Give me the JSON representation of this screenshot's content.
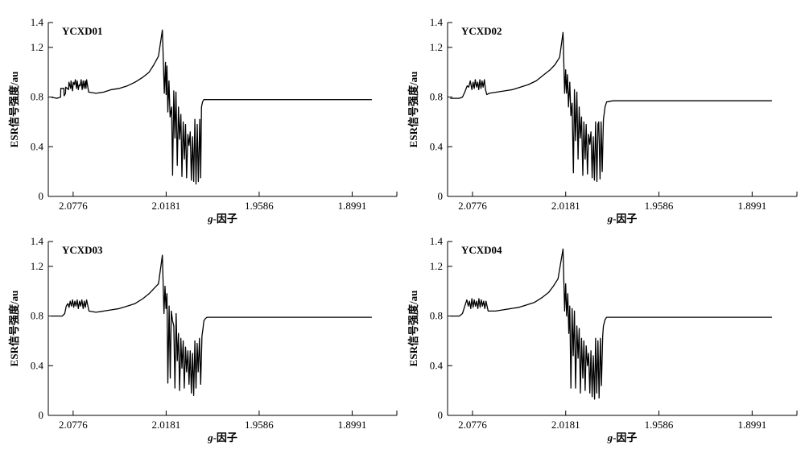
{
  "chart_data": [
    {
      "type": "line",
      "title": "YCXD01",
      "xlabel_italic": "g",
      "xlabel_rest": "-因子",
      "ylabel": "ESR信号强度/au",
      "ylim": [
        0,
        1.4
      ],
      "y_ticks": [
        "0",
        "0.4",
        "0.8",
        "1.2",
        "1.4"
      ],
      "y_tick_values": [
        0,
        0.4,
        0.8,
        1.2,
        1.4
      ],
      "x_ticks": [
        "2.0776",
        "2.0181",
        "1.9586",
        "1.8991"
      ],
      "x_tick_values": [
        2.0776,
        2.0181,
        1.9586,
        1.8991
      ],
      "xlim": [
        2.0935,
        1.8705
      ],
      "x_reversed": true,
      "series": [
        {
          "x": [
            2.0918,
            2.088,
            2.0856,
            2.0855,
            2.0835,
            2.0834,
            2.0825,
            2.0824,
            2.0805,
            2.0803,
            2.0792,
            2.079,
            2.078,
            2.0775,
            2.0768,
            2.0762,
            2.0755,
            2.075,
            2.0743,
            2.0737,
            2.0731,
            2.0725,
            2.0718,
            2.0712,
            2.0706,
            2.0699,
            2.0694,
            2.069,
            2.0677,
            2.063,
            2.058,
            2.053,
            2.048,
            2.043,
            2.038,
            2.033,
            2.029,
            2.026,
            2.023,
            2.0205,
            2.0193,
            2.0185,
            2.0181,
            2.0176,
            2.017,
            2.0163,
            2.0156,
            2.0146,
            2.014,
            2.0132,
            2.0125,
            2.0118,
            2.011,
            2.0102,
            2.0095,
            2.0087,
            2.008,
            2.0072,
            2.0064,
            2.0057,
            2.005,
            2.0042,
            2.0035,
            2.0027,
            2.002,
            2.0012,
            2.0005,
            1.9997,
            1.999,
            1.9982,
            1.9975,
            1.9966,
            1.996,
            1.9955,
            1.9948,
            1.994,
            1.993,
            1.992,
            1.988,
            1.978,
            1.965,
            1.95,
            1.935,
            1.92,
            1.905,
            1.895,
            1.887,
            1.8865
          ],
          "y": [
            0.8,
            0.79,
            0.8,
            0.87,
            0.87,
            0.81,
            0.83,
            0.88,
            0.86,
            0.92,
            0.87,
            0.93,
            0.85,
            0.92,
            0.9,
            0.94,
            0.87,
            0.93,
            0.86,
            0.9,
            0.89,
            0.94,
            0.86,
            0.93,
            0.87,
            0.93,
            0.87,
            0.94,
            0.84,
            0.83,
            0.84,
            0.86,
            0.87,
            0.89,
            0.92,
            0.96,
            1.0,
            1.06,
            1.13,
            1.34,
            0.83,
            1.08,
            0.82,
            1.05,
            0.68,
            0.93,
            0.64,
            0.72,
            0.17,
            0.85,
            0.47,
            0.84,
            0.25,
            0.72,
            0.46,
            0.66,
            0.16,
            0.6,
            0.3,
            0.58,
            0.15,
            0.5,
            0.41,
            0.52,
            0.13,
            0.48,
            0.12,
            0.62,
            0.1,
            0.58,
            0.12,
            0.62,
            0.15,
            0.72,
            0.76,
            0.78,
            0.78,
            0.78,
            0.78,
            0.78,
            0.78,
            0.78,
            0.78,
            0.78,
            0.78,
            0.78,
            0.78,
            0.78
          ]
        }
      ]
    },
    {
      "type": "line",
      "title": "YCXD02",
      "xlabel_italic": "g",
      "xlabel_rest": "-因子",
      "ylabel": "ESR信号强度/au",
      "ylim": [
        0,
        1.4
      ],
      "y_ticks": [
        "0",
        "0.4",
        "0.8",
        "1.2",
        "1.4"
      ],
      "y_tick_values": [
        0,
        0.4,
        0.8,
        1.2,
        1.4
      ],
      "x_ticks": [
        "2.0776",
        "2.0181",
        "1.9586",
        "1.8991"
      ],
      "x_tick_values": [
        2.0776,
        2.0181,
        1.9586,
        1.8991
      ],
      "xlim": [
        2.0935,
        1.8705
      ],
      "x_reversed": true,
      "series": [
        {
          "x": [
            2.0918,
            2.086,
            2.084,
            2.0825,
            2.081,
            2.08,
            2.079,
            2.078,
            2.0772,
            2.0765,
            2.0758,
            2.075,
            2.0743,
            2.0736,
            2.0729,
            2.0722,
            2.0715,
            2.0708,
            2.07,
            2.0693,
            2.0685,
            2.067,
            2.062,
            2.057,
            2.052,
            2.047,
            2.042,
            2.037,
            2.032,
            2.028,
            2.025,
            2.022,
            2.0198,
            2.0188,
            2.0181,
            2.0176,
            2.017,
            2.0163,
            2.0155,
            2.0148,
            2.014,
            2.0132,
            2.0125,
            2.0118,
            2.011,
            2.0102,
            2.0095,
            2.0088,
            2.008,
            2.0072,
            2.0065,
            2.0057,
            2.005,
            2.0042,
            2.0035,
            2.0027,
            2.002,
            2.0012,
            2.0005,
            1.9998,
            1.999,
            1.9982,
            1.9975,
            1.997,
            1.9962,
            1.9955,
            1.9948,
            1.994,
            1.993,
            1.992,
            1.988,
            1.978,
            1.965,
            1.95,
            1.935,
            1.92,
            1.905,
            1.895,
            1.887,
            1.8865
          ],
          "y": [
            0.79,
            0.79,
            0.8,
            0.84,
            0.89,
            0.88,
            0.93,
            0.86,
            0.92,
            0.87,
            0.94,
            0.88,
            0.92,
            0.86,
            0.94,
            0.87,
            0.93,
            0.88,
            0.94,
            0.86,
            0.82,
            0.83,
            0.84,
            0.85,
            0.86,
            0.88,
            0.9,
            0.93,
            0.98,
            1.02,
            1.06,
            1.12,
            1.32,
            0.83,
            1.02,
            0.83,
            0.98,
            0.72,
            0.92,
            0.65,
            0.75,
            0.19,
            0.86,
            0.45,
            0.84,
            0.3,
            0.72,
            0.47,
            0.64,
            0.17,
            0.6,
            0.3,
            0.58,
            0.18,
            0.5,
            0.42,
            0.52,
            0.15,
            0.48,
            0.13,
            0.6,
            0.12,
            0.58,
            0.6,
            0.14,
            0.6,
            0.2,
            0.62,
            0.72,
            0.76,
            0.77,
            0.77,
            0.77,
            0.77,
            0.77,
            0.77,
            0.77,
            0.77,
            0.77,
            0.77
          ]
        }
      ]
    },
    {
      "type": "line",
      "title": "YCXD03",
      "xlabel_italic": "g",
      "xlabel_rest": "-因子",
      "ylabel": "ESR信号强度/au",
      "ylim": [
        0,
        1.4
      ],
      "y_ticks": [
        "0",
        "0.4",
        "0.8",
        "1.2",
        "1.4"
      ],
      "y_tick_values": [
        0,
        0.4,
        0.8,
        1.2,
        1.4
      ],
      "x_ticks": [
        "2.0776",
        "2.0181",
        "1.9586",
        "1.8991"
      ],
      "x_tick_values": [
        2.0776,
        2.0181,
        1.9586,
        1.8991
      ],
      "xlim": [
        2.0935,
        1.8705
      ],
      "x_reversed": true,
      "series": [
        {
          "x": [
            2.0918,
            2.0845,
            2.083,
            2.082,
            2.081,
            2.0802,
            2.0795,
            2.0787,
            2.078,
            2.0772,
            2.0765,
            2.0758,
            2.075,
            2.0743,
            2.0735,
            2.0728,
            2.072,
            2.0712,
            2.0705,
            2.0698,
            2.069,
            2.0675,
            2.063,
            2.058,
            2.053,
            2.048,
            2.043,
            2.038,
            2.033,
            2.029,
            2.026,
            2.023,
            2.0205,
            2.0195,
            2.0188,
            2.0182,
            2.0176,
            2.017,
            2.0162,
            2.0155,
            2.0148,
            2.014,
            2.0132,
            2.0125,
            2.0117,
            2.011,
            2.0102,
            2.0095,
            2.0087,
            2.008,
            2.0072,
            2.0065,
            2.0057,
            2.005,
            2.0042,
            2.0035,
            2.0027,
            2.002,
            2.0012,
            2.0005,
            1.9997,
            1.999,
            1.9983,
            1.9976,
            1.9968,
            1.996,
            1.9952,
            1.9945,
            1.994,
            1.993,
            1.992,
            1.988,
            1.978,
            1.965,
            1.95,
            1.935,
            1.92,
            1.905,
            1.895,
            1.887,
            1.8865
          ],
          "y": [
            0.8,
            0.8,
            0.82,
            0.88,
            0.9,
            0.87,
            0.92,
            0.88,
            0.93,
            0.87,
            0.92,
            0.88,
            0.93,
            0.86,
            0.92,
            0.88,
            0.93,
            0.86,
            0.92,
            0.87,
            0.93,
            0.84,
            0.83,
            0.84,
            0.85,
            0.86,
            0.88,
            0.9,
            0.94,
            0.98,
            1.02,
            1.06,
            1.29,
            0.82,
            1.04,
            0.86,
            0.98,
            0.26,
            0.88,
            0.3,
            0.84,
            0.76,
            0.72,
            0.22,
            0.82,
            0.44,
            0.66,
            0.2,
            0.62,
            0.38,
            0.6,
            0.22,
            0.55,
            0.35,
            0.52,
            0.25,
            0.52,
            0.18,
            0.5,
            0.16,
            0.6,
            0.22,
            0.58,
            0.35,
            0.62,
            0.25,
            0.64,
            0.7,
            0.76,
            0.78,
            0.79,
            0.79,
            0.79,
            0.79,
            0.79,
            0.79,
            0.79,
            0.79,
            0.79,
            0.79,
            0.79
          ]
        }
      ]
    },
    {
      "type": "line",
      "title": "YCXD04",
      "xlabel_italic": "g",
      "xlabel_rest": "-因子",
      "ylabel": "ESR信号强度/au",
      "ylim": [
        0,
        1.4
      ],
      "y_ticks": [
        "0",
        "0.4",
        "0.8",
        "1.2",
        "1.4"
      ],
      "y_tick_values": [
        0,
        0.4,
        0.8,
        1.2,
        1.4
      ],
      "x_ticks": [
        "2.0776",
        "2.0181",
        "1.9586",
        "1.8991"
      ],
      "x_tick_values": [
        2.0776,
        2.0181,
        1.9586,
        1.8991
      ],
      "xlim": [
        2.0935,
        1.8705
      ],
      "x_reversed": true,
      "series": [
        {
          "x": [
            2.0918,
            2.086,
            2.084,
            2.0825,
            2.0812,
            2.0803,
            2.0795,
            2.0787,
            2.078,
            2.0772,
            2.0765,
            2.0757,
            2.075,
            2.0742,
            2.0735,
            2.0727,
            2.072,
            2.0712,
            2.0705,
            2.0697,
            2.069,
            2.0676,
            2.063,
            2.058,
            2.053,
            2.048,
            2.043,
            2.038,
            2.033,
            2.029,
            2.026,
            2.023,
            2.0198,
            2.0188,
            2.0181,
            2.0175,
            2.0168,
            2.0161,
            2.0155,
            2.0148,
            2.014,
            2.0133,
            2.0125,
            2.0118,
            2.011,
            2.0102,
            2.0095,
            2.0087,
            2.008,
            2.0072,
            2.0065,
            2.0057,
            2.005,
            2.0042,
            2.0035,
            2.0027,
            2.002,
            2.0012,
            2.0005,
            1.9997,
            1.999,
            1.9983,
            1.9975,
            1.9968,
            1.996,
            1.9953,
            1.9945,
            1.994,
            1.993,
            1.992,
            1.988,
            1.978,
            1.965,
            1.95,
            1.935,
            1.92,
            1.905,
            1.895,
            1.887,
            1.8865
          ],
          "y": [
            0.8,
            0.8,
            0.82,
            0.88,
            0.93,
            0.88,
            0.92,
            0.86,
            0.94,
            0.87,
            0.93,
            0.88,
            0.92,
            0.86,
            0.94,
            0.87,
            0.93,
            0.88,
            0.92,
            0.86,
            0.92,
            0.84,
            0.84,
            0.85,
            0.86,
            0.87,
            0.89,
            0.91,
            0.95,
            0.99,
            1.04,
            1.1,
            1.34,
            0.84,
            1.06,
            0.8,
            0.98,
            0.66,
            0.88,
            0.22,
            0.86,
            0.48,
            0.84,
            0.22,
            0.72,
            0.46,
            0.7,
            0.18,
            0.62,
            0.3,
            0.6,
            0.2,
            0.56,
            0.4,
            0.5,
            0.18,
            0.52,
            0.15,
            0.48,
            0.13,
            0.62,
            0.18,
            0.6,
            0.14,
            0.62,
            0.24,
            0.64,
            0.72,
            0.77,
            0.79,
            0.79,
            0.79,
            0.79,
            0.79,
            0.79,
            0.79,
            0.79,
            0.79,
            0.79,
            0.79
          ]
        }
      ]
    }
  ]
}
